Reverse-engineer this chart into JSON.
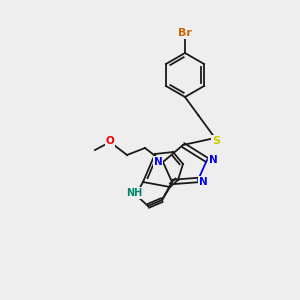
{
  "background_color": "#eeeeee",
  "figsize": [
    3.0,
    3.0
  ],
  "dpi": 100,
  "bond_color": "#1a1a1a",
  "atom_colors": {
    "Br": "#cc6600",
    "S": "#cccc00",
    "N": "#0000ee",
    "O": "#ee0000",
    "NH": "#008080",
    "C": "#1a1a1a"
  },
  "font_size": 7.5,
  "lw": 1.3
}
